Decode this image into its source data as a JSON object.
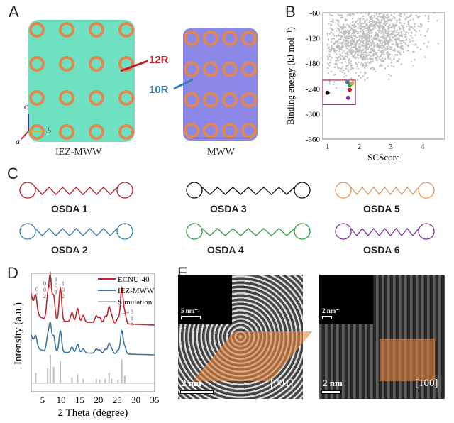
{
  "panels": {
    "a": "A",
    "b": "B",
    "c": "C",
    "d": "D",
    "e": "E"
  },
  "panel_a": {
    "left_caption": "IEZ-MWW",
    "right_caption": "MWW",
    "ring_12": "12R",
    "ring_10": "10R",
    "axes": {
      "c": "c",
      "a": "a",
      "b": "b"
    },
    "colors": {
      "iez": "#6fe0c0",
      "mww": "#8c88e8",
      "framework": "#e08850"
    }
  },
  "panel_c": {
    "osdas": [
      {
        "label": "OSDA 1",
        "color": "#b8232b"
      },
      {
        "label": "OSDA 3",
        "color": "#111111"
      },
      {
        "label": "OSDA 5",
        "color": "#e0955a"
      },
      {
        "label": "OSDA 2",
        "color": "#3b7fa8"
      },
      {
        "label": "OSDA 4",
        "color": "#2e9a40"
      },
      {
        "label": "OSDA 6",
        "color": "#7a2fa0"
      }
    ]
  },
  "panel_e": {
    "left": {
      "fft_scale": "5 nm⁻¹",
      "scale": "2 nm",
      "zone": "[001]"
    },
    "right": {
      "fft_scale": "2 nm⁻¹",
      "scale": "2 nm",
      "zone": "[100]"
    }
  },
  "chart_data": [
    {
      "type": "scatter",
      "panel": "B",
      "xlabel": "SCScore",
      "ylabel": "Binding energy (kJ mol⁻¹)",
      "xlim": [
        0.85,
        4.7
      ],
      "ylim": [
        -360,
        -60
      ],
      "xticks": [
        "1",
        "2",
        "3",
        "4"
      ],
      "yticks": [
        "-60",
        "-120",
        "-180",
        "-240",
        "-300",
        "-360"
      ],
      "background_cloud": {
        "color": "#c0c0c0",
        "x_range": [
          1,
          4.7
        ],
        "y_range": [
          -280,
          -60
        ],
        "center": [
          2.3,
          -125
        ]
      },
      "highlighted": [
        {
          "name": "OSDA 3",
          "x": 1.0,
          "y": -250,
          "color": "#111111"
        },
        {
          "name": "OSDA 2",
          "x": 1.63,
          "y": -225,
          "color": "#3b7fa8"
        },
        {
          "name": "OSDA 4",
          "x": 1.7,
          "y": -232,
          "color": "#2e9a40"
        },
        {
          "name": "OSDA 5",
          "x": 1.78,
          "y": -228,
          "color": "#e0955a"
        },
        {
          "name": "OSDA 1",
          "x": 1.7,
          "y": -243,
          "color": "#b8232b"
        },
        {
          "name": "OSDA 6",
          "x": 1.65,
          "y": -262,
          "color": "#7a2fa0"
        }
      ]
    },
    {
      "type": "line",
      "panel": "D",
      "xlabel": "2 Theta (degree)",
      "ylabel": "Intensity (a.u.)",
      "xlim": [
        2,
        35
      ],
      "xticks": [
        "5",
        "10",
        "15",
        "20",
        "25",
        "30",
        "35"
      ],
      "legend": [
        {
          "name": "ECNU-40",
          "color": "#c0272d"
        },
        {
          "name": "IEZ-MWW",
          "color": "#3f74a6"
        },
        {
          "name": "Simulation",
          "color": "#bdbdbd"
        }
      ],
      "peaks": [
        {
          "x": 3.2,
          "h": 0.35
        },
        {
          "x": 6.4,
          "h": 0.5
        },
        {
          "x": 7.1,
          "h": 0.95
        },
        {
          "x": 8.0,
          "h": 0.55
        },
        {
          "x": 9.8,
          "h": 0.75
        },
        {
          "x": 12.9,
          "h": 0.2
        },
        {
          "x": 14.4,
          "h": 0.3
        },
        {
          "x": 15.9,
          "h": 0.15
        },
        {
          "x": 19.4,
          "h": 0.15
        },
        {
          "x": 20.3,
          "h": 0.12
        },
        {
          "x": 21.8,
          "h": 0.15
        },
        {
          "x": 22.8,
          "h": 0.35
        },
        {
          "x": 23.5,
          "h": 0.15
        },
        {
          "x": 25.2,
          "h": 0.12
        },
        {
          "x": 26.2,
          "h": 0.8
        },
        {
          "x": 27.0,
          "h": 0.25
        }
      ],
      "annotations": [
        "001",
        "002",
        "100",
        "101",
        "102",
        "310"
      ]
    }
  ]
}
